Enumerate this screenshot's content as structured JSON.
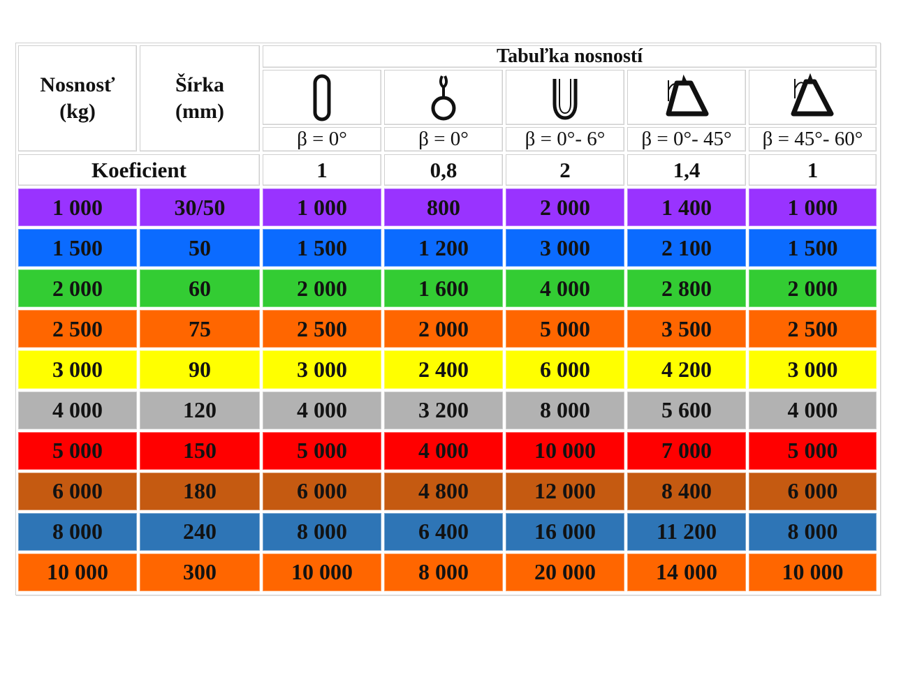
{
  "table": {
    "title": "Tabuľka nosností",
    "col_capacity_label": [
      "Nosnosť",
      "(kg)"
    ],
    "col_width_label": [
      "Šírka",
      "(mm)"
    ],
    "icons": [
      "loop-straight-icon",
      "choke-hitch-icon",
      "basket-u-icon",
      "triangle-0-45-icon",
      "triangle-45-60-icon"
    ],
    "angles": [
      "β = 0°",
      "β = 0°",
      "β = 0°- 6°",
      "β = 0°- 45°",
      "β = 45°- 60°"
    ],
    "coef_label": "Koeficient",
    "coefs": [
      "1",
      "0,8",
      "2",
      "1,4",
      "1"
    ],
    "rows": [
      {
        "color": "#9933ff",
        "cells": [
          "1 000",
          "30/50",
          "1 000",
          "800",
          "2 000",
          "1 400",
          "1 000"
        ]
      },
      {
        "color": "#0b6bff",
        "cells": [
          "1 500",
          "50",
          "1 500",
          "1 200",
          "3 000",
          "2 100",
          "1 500"
        ]
      },
      {
        "color": "#33cc33",
        "cells": [
          "2 000",
          "60",
          "2 000",
          "1 600",
          "4 000",
          "2 800",
          "2 000"
        ]
      },
      {
        "color": "#ff6600",
        "cells": [
          "2 500",
          "75",
          "2 500",
          "2 000",
          "5 000",
          "3 500",
          "2 500"
        ]
      },
      {
        "color": "#ffff00",
        "cells": [
          "3 000",
          "90",
          "3 000",
          "2 400",
          "6 000",
          "4 200",
          "3 000"
        ]
      },
      {
        "color": "#b2b2b2",
        "cells": [
          "4 000",
          "120",
          "4 000",
          "3 200",
          "8 000",
          "5 600",
          "4 000"
        ]
      },
      {
        "color": "#ff0000",
        "cells": [
          "5 000",
          "150",
          "5 000",
          "4 000",
          "10 000",
          "7 000",
          "5 000"
        ]
      },
      {
        "color": "#c55a11",
        "cells": [
          "6 000",
          "180",
          "6 000",
          "4 800",
          "12 000",
          "8 400",
          "6 000"
        ]
      },
      {
        "color": "#2e75b6",
        "cells": [
          "8 000",
          "240",
          "8 000",
          "6 400",
          "16 000",
          "11 200",
          "8 000"
        ]
      },
      {
        "color": "#ff6600",
        "cells": [
          "10 000",
          "300",
          "10 000",
          "8 000",
          "20 000",
          "14 000",
          "10 000"
        ]
      }
    ]
  }
}
